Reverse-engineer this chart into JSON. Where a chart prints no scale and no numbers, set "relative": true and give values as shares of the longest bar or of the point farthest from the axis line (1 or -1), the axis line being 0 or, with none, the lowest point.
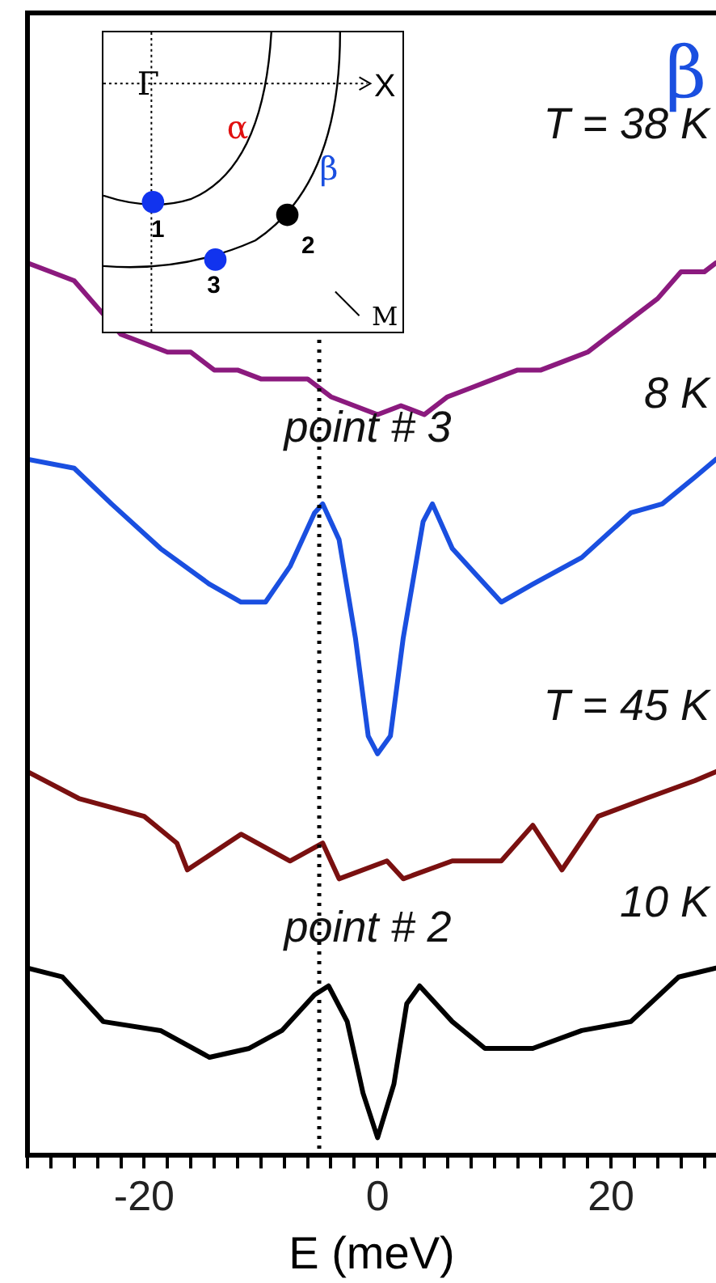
{
  "chart_data": {
    "type": "line",
    "relative": true,
    "xlabel": "E (meV)",
    "xlim": [
      -30,
      29
    ],
    "xticks": [
      {
        "value": -30,
        "label": null
      },
      {
        "value": -28,
        "label": null
      },
      {
        "value": -26,
        "label": null
      },
      {
        "value": -24,
        "label": null
      },
      {
        "value": -22,
        "label": null
      },
      -20,
      {
        "value": -18,
        "label": null
      },
      {
        "value": -16,
        "label": null
      },
      {
        "value": -14,
        "label": null
      },
      {
        "value": -12,
        "label": null
      },
      {
        "value": -10,
        "label": null
      },
      {
        "value": -8,
        "label": null
      },
      {
        "value": -6,
        "label": null
      },
      {
        "value": -4,
        "label": null
      },
      {
        "value": -2,
        "label": null
      },
      0,
      {
        "value": 2,
        "label": null
      },
      {
        "value": 4,
        "label": null
      },
      {
        "value": 6,
        "label": null
      },
      {
        "value": 8,
        "label": null
      },
      {
        "value": 10,
        "label": null
      },
      {
        "value": 12,
        "label": null
      },
      {
        "value": 14,
        "label": null
      },
      {
        "value": 16,
        "label": null
      },
      {
        "value": 18,
        "label": null
      },
      20,
      {
        "value": 22,
        "label": null
      },
      {
        "value": 24,
        "label": null
      },
      {
        "value": 26,
        "label": null
      },
      {
        "value": 28,
        "label": null
      }
    ],
    "series": [
      {
        "name": "T = 38 K",
        "color": "#8b1a7e",
        "x": [
          -30,
          -28,
          -26,
          -24,
          -22,
          -20,
          -18,
          -16,
          -14,
          -12,
          -10,
          -8,
          -6,
          -4,
          -2,
          0,
          2,
          4,
          6,
          8,
          10,
          12,
          14,
          16,
          18,
          20,
          22,
          24,
          26,
          28,
          29
        ],
        "values": [
          1.0,
          0.99,
          0.98,
          0.95,
          0.92,
          0.91,
          0.9,
          0.9,
          0.88,
          0.88,
          0.87,
          0.87,
          0.87,
          0.85,
          0.84,
          0.83,
          0.84,
          0.83,
          0.85,
          0.86,
          0.87,
          0.88,
          0.88,
          0.89,
          0.9,
          0.92,
          0.94,
          0.96,
          0.99,
          0.99,
          1.0
        ]
      },
      {
        "name": "8 K",
        "color": "#1a4fe0",
        "x": [
          -30,
          -26,
          -22.8,
          -18.6,
          -14.4,
          -11.7,
          -9.6,
          -7.5,
          -5.4,
          -4.7,
          -3.3,
          -1.9,
          -0.8,
          0,
          1.1,
          2.2,
          3.9,
          4.7,
          6.4,
          8.5,
          10.6,
          13.3,
          17.5,
          21.7,
          24.4,
          27.2,
          29
        ],
        "values": [
          0.78,
          0.77,
          0.73,
          0.68,
          0.64,
          0.62,
          0.62,
          0.66,
          0.72,
          0.73,
          0.69,
          0.58,
          0.47,
          0.45,
          0.47,
          0.58,
          0.71,
          0.73,
          0.68,
          0.65,
          0.62,
          0.64,
          0.67,
          0.72,
          0.73,
          0.76,
          0.78
        ]
      },
      {
        "name": "T = 45 K",
        "color": "#7a1010",
        "x": [
          -30,
          -25.6,
          -20,
          -17.2,
          -16.3,
          -11.7,
          -7.5,
          -4.7,
          -3.3,
          0.8,
          2.2,
          6.4,
          10.6,
          13.3,
          15.8,
          18.9,
          23,
          27.2,
          29
        ],
        "values": [
          0.43,
          0.4,
          0.38,
          0.35,
          0.32,
          0.36,
          0.33,
          0.35,
          0.31,
          0.33,
          0.31,
          0.33,
          0.33,
          0.37,
          0.32,
          0.38,
          0.4,
          0.42,
          0.43
        ]
      },
      {
        "name": "10 K",
        "color": "#000000",
        "x": [
          -30,
          -27,
          -23.5,
          -18.6,
          -14.4,
          -11,
          -8.2,
          -5.4,
          -4.2,
          -2.6,
          -1.25,
          0,
          1.4,
          2.5,
          3.6,
          6.4,
          9.2,
          13.3,
          17.5,
          21.7,
          25.8,
          29
        ],
        "values": [
          0.21,
          0.2,
          0.15,
          0.14,
          0.11,
          0.12,
          0.14,
          0.18,
          0.19,
          0.15,
          0.07,
          0.02,
          0.08,
          0.17,
          0.19,
          0.15,
          0.12,
          0.12,
          0.14,
          0.15,
          0.2,
          0.21
        ]
      }
    ],
    "ref_lines": [
      {
        "axis": "x",
        "value": -5,
        "line_style": "dotted",
        "color": "#000000"
      }
    ],
    "annotations": [
      {
        "text": "point # 3",
        "x": -5,
        "y": 0.8
      },
      {
        "text": "point # 2",
        "x": -5,
        "y": 0.24
      },
      "β",
      "Γ",
      "X",
      "α",
      "β",
      "1",
      "2",
      "3",
      "M"
    ]
  }
}
